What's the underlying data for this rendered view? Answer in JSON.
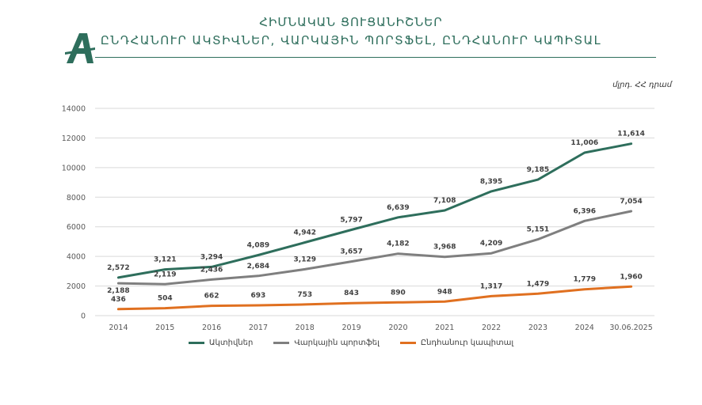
{
  "header": {
    "title": "ՀԻՄՆԱԿԱՆ ՑՈՒՑԱՆԻՇՆԵՐ",
    "subtitle": "ԸՆԴՀԱՆՈՒՐ ԱԿՏԻՎՆԵՐ, ՎԱՐԿԱՅԻՆ ՊՈՐՏՖԵԼ, ԸՆԴՀԱՆՈՒՐ ԿԱՊԻՏԱԼ",
    "logo_text": "A",
    "unit": "մլրդ. ՀՀ դրամ"
  },
  "colors": {
    "brand": "#2e6e5c",
    "assets": "#2e6e5c",
    "loans": "#7f7f7f",
    "capital": "#e07020"
  },
  "chart_data": {
    "type": "line",
    "categories": [
      "2014",
      "2015",
      "2016",
      "2017",
      "2018",
      "2019",
      "2020",
      "2021",
      "2022",
      "2023",
      "2024",
      "30.06.2025"
    ],
    "ylim": [
      0,
      14000
    ],
    "yticks": [
      "0",
      "2000",
      "4000",
      "6000",
      "8000",
      "10000",
      "12000",
      "14000"
    ],
    "grid": true,
    "legend_position": "bottom",
    "series": [
      {
        "name": "Ակտիվներ",
        "color": "#2e6e5c",
        "values": [
          2572,
          3121,
          3294,
          4089,
          4942,
          5797,
          6639,
          7108,
          8395,
          9185,
          11006,
          11614
        ],
        "labels": [
          "2,572",
          "3,121",
          "3,294",
          "4,089",
          "4,942",
          "5,797",
          "6,639",
          "7,108",
          "8,395",
          "9,185",
          "11,006",
          "11,614"
        ]
      },
      {
        "name": "Վարկային պորտֆել",
        "color": "#7f7f7f",
        "values": [
          2188,
          2119,
          2436,
          2684,
          3129,
          3657,
          4182,
          3968,
          4209,
          5151,
          6396,
          7054
        ],
        "labels": [
          "2,188",
          "2,119",
          "2,436",
          "2,684",
          "3,129",
          "3,657",
          "4,182",
          "3,968",
          "4,209",
          "5,151",
          "6,396",
          "7,054"
        ]
      },
      {
        "name": "Ընդհանուր կապիտալ",
        "color": "#e07020",
        "values": [
          436,
          504,
          662,
          693,
          753,
          843,
          890,
          948,
          1317,
          1479,
          1779,
          1960
        ],
        "labels": [
          "436",
          "504",
          "662",
          "693",
          "753",
          "843",
          "890",
          "948",
          "1,317",
          "1,479",
          "1,779",
          "1,960"
        ]
      }
    ]
  }
}
